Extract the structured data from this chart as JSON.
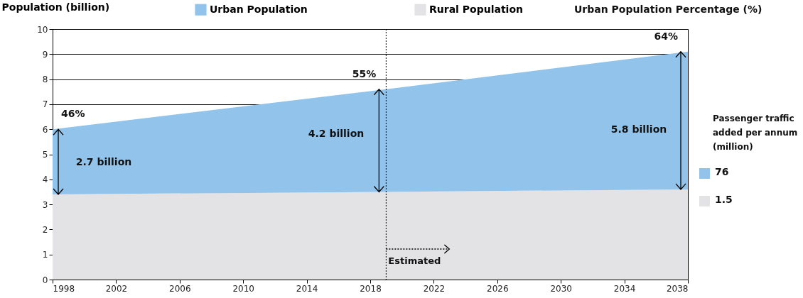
{
  "chart_data": {
    "type": "area",
    "stacked": true,
    "ylabel": "Population (billion)",
    "x": [
      1998,
      2019,
      2038
    ],
    "series": [
      {
        "name": "Rural Population",
        "color": "#e3e3e5",
        "values": [
          3.4,
          3.5,
          3.6
        ]
      },
      {
        "name": "Urban Population",
        "color": "#92c4eb",
        "values": [
          2.6,
          4.1,
          5.5
        ]
      }
    ],
    "xlim": [
      1998,
      2038
    ],
    "xticks": [
      1998,
      2002,
      2006,
      2010,
      2014,
      2018,
      2022,
      2026,
      2030,
      2034,
      2038
    ],
    "ylim": [
      0,
      10
    ],
    "yticks": [
      0,
      1,
      2,
      3,
      4,
      5,
      6,
      7,
      8,
      9,
      10
    ],
    "grid": "y",
    "legend": "top",
    "ref_lines": [
      {
        "axis": "x",
        "value": 2019,
        "label": "Estimated",
        "line_style": "dotted"
      }
    ],
    "annotations": [
      "Urban Population Percentage (%)",
      "Passenger traffic added per annum (million)",
      "76",
      "1.5",
      {
        "text": "46%",
        "x": 1998,
        "y": 6.0
      },
      {
        "text": "55%",
        "x": 2019,
        "y": 7.6
      },
      {
        "text": "64%",
        "x": 2038,
        "y": 9.1
      },
      "2.7 billion",
      "4.2 billion",
      "5.8 billion"
    ]
  }
}
